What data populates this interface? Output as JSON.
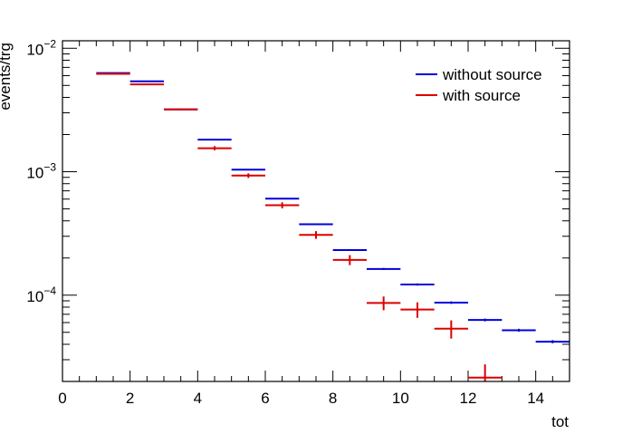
{
  "chart_data": {
    "type": "scatter",
    "title": "",
    "xlabel": "tot",
    "ylabel": "events/trg",
    "xlim": [
      0,
      15
    ],
    "ylim": [
      2e-05,
      0.0115
    ],
    "y_scale": "log",
    "x_ticks": [
      "0",
      "2",
      "4",
      "6",
      "8",
      "10",
      "12",
      "14"
    ],
    "y_ticks": [
      {
        "base": "10",
        "exp": "−2",
        "value": 0.01
      },
      {
        "base": "10",
        "exp": "−3",
        "value": 0.001
      },
      {
        "base": "10",
        "exp": "−4",
        "value": 0.0001
      }
    ],
    "legend_position": "top-right",
    "series": [
      {
        "name": "without source",
        "color": "#0000dd",
        "points": [
          {
            "x_low": 1,
            "x_high": 2,
            "y": 0.0063,
            "err": 4e-05
          },
          {
            "x_low": 2,
            "x_high": 3,
            "y": 0.0054,
            "err": 4e-05
          },
          {
            "x_low": 3,
            "x_high": 4,
            "y": 0.0032,
            "err": 3e-05
          },
          {
            "x_low": 4,
            "x_high": 5,
            "y": 0.00182,
            "err": 2e-05
          },
          {
            "x_low": 5,
            "x_high": 6,
            "y": 0.00104,
            "err": 1.2e-05
          },
          {
            "x_low": 6,
            "x_high": 7,
            "y": 0.000605,
            "err": 8e-06
          },
          {
            "x_low": 7,
            "x_high": 8,
            "y": 0.000375,
            "err": 6e-06
          },
          {
            "x_low": 8,
            "x_high": 9,
            "y": 0.000232,
            "err": 4e-06
          },
          {
            "x_low": 9,
            "x_high": 10,
            "y": 0.000163,
            "err": 3e-06
          },
          {
            "x_low": 10,
            "x_high": 11,
            "y": 0.000122,
            "err": 2.5e-06
          },
          {
            "x_low": 11,
            "x_high": 12,
            "y": 8.7e-05,
            "err": 2e-06
          },
          {
            "x_low": 12,
            "x_high": 13,
            "y": 6.3e-05,
            "err": 1.6e-06
          },
          {
            "x_low": 13,
            "x_high": 14,
            "y": 5.2e-05,
            "err": 1.4e-06
          },
          {
            "x_low": 14,
            "x_high": 15,
            "y": 4.2e-05,
            "err": 1.2e-06
          }
        ]
      },
      {
        "name": "with source",
        "color": "#dd0000",
        "points": [
          {
            "x_low": 1,
            "x_high": 2,
            "y": 0.0062,
            "err": 8e-05
          },
          {
            "x_low": 2,
            "x_high": 3,
            "y": 0.0051,
            "err": 7e-05
          },
          {
            "x_low": 3,
            "x_high": 4,
            "y": 0.0032,
            "err": 5e-05
          },
          {
            "x_low": 4,
            "x_high": 5,
            "y": 0.00155,
            "err": 6e-05
          },
          {
            "x_low": 5,
            "x_high": 6,
            "y": 0.00093,
            "err": 4e-05
          },
          {
            "x_low": 6,
            "x_high": 7,
            "y": 0.000535,
            "err": 3e-05
          },
          {
            "x_low": 7,
            "x_high": 8,
            "y": 0.000308,
            "err": 2.2e-05
          },
          {
            "x_low": 8,
            "x_high": 9,
            "y": 0.000193,
            "err": 1.8e-05
          },
          {
            "x_low": 9,
            "x_high": 10,
            "y": 8.65e-05,
            "err": 1.1e-05
          },
          {
            "x_low": 10,
            "x_high": 11,
            "y": 7.65e-05,
            "err": 1.1e-05
          },
          {
            "x_low": 11,
            "x_high": 12,
            "y": 5.35e-05,
            "err": 9e-06
          },
          {
            "x_low": 12,
            "x_high": 13,
            "y": 2.15e-05,
            "err": 6e-06
          }
        ]
      }
    ]
  }
}
